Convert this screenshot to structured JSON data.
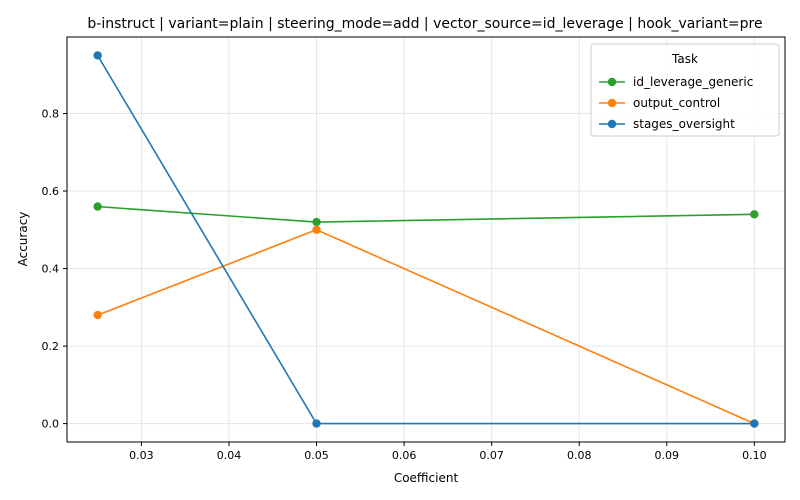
{
  "chart_data": {
    "type": "line",
    "title": "b-instruct | variant=plain | steering_mode=add | vector_source=id_leverage | hook_variant=pre",
    "xlabel": "Coefficient",
    "ylabel": "Accuracy",
    "xlim": [
      0.0215,
      0.1035
    ],
    "ylim": [
      -0.0475,
      0.9975
    ],
    "xticks": [
      0.03,
      0.04,
      0.05,
      0.06,
      0.07,
      0.08,
      0.09,
      0.1
    ],
    "xtick_labels": [
      "0.03",
      "0.04",
      "0.05",
      "0.06",
      "0.07",
      "0.08",
      "0.09",
      "0.10"
    ],
    "yticks": [
      0.0,
      0.2,
      0.4,
      0.6,
      0.8
    ],
    "ytick_labels": [
      "0.0",
      "0.2",
      "0.4",
      "0.6",
      "0.8"
    ],
    "grid": true,
    "legend_title": "Task",
    "legend_position": "top-right",
    "series": [
      {
        "name": "id_leverage_generic",
        "color": "#2ca02c",
        "x": [
          0.025,
          0.05,
          0.1
        ],
        "y": [
          0.56,
          0.52,
          0.54
        ]
      },
      {
        "name": "output_control",
        "color": "#ff7f0e",
        "x": [
          0.025,
          0.05,
          0.1
        ],
        "y": [
          0.28,
          0.5,
          0.0
        ]
      },
      {
        "name": "stages_oversight",
        "color": "#1f77b4",
        "x": [
          0.025,
          0.05,
          0.1
        ],
        "y": [
          0.95,
          0.0,
          0.0
        ]
      }
    ]
  }
}
